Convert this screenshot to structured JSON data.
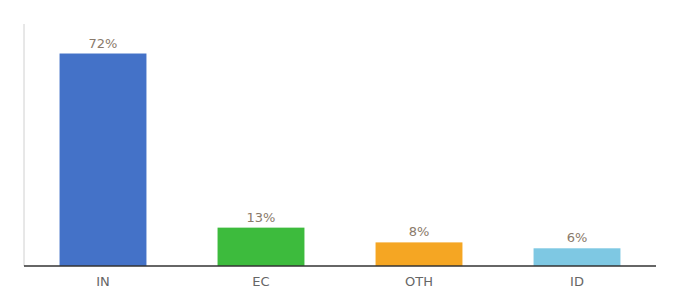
{
  "chart_data": {
    "type": "bar",
    "categories": [
      "IN",
      "EC",
      "OTH",
      "ID"
    ],
    "values": [
      72,
      13,
      8,
      6
    ],
    "value_labels": [
      "72%",
      "13%",
      "8%",
      "6%"
    ],
    "colors": [
      "#4472c8",
      "#3dbb3d",
      "#f5a623",
      "#7ec8e3"
    ],
    "ylim": [
      0,
      82
    ],
    "data_labels": true,
    "tick_labels": "x",
    "grid": false
  }
}
